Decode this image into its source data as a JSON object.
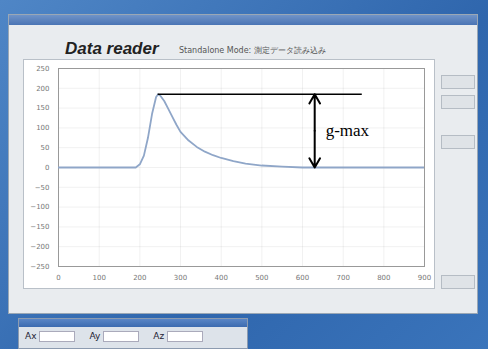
{
  "chart_data": {
    "type": "line",
    "title": "Data reader",
    "subtitle": "Standalone Mode: 測定データ読み込み",
    "x": [
      0,
      100,
      190,
      200,
      210,
      220,
      230,
      240,
      245,
      250,
      260,
      270,
      280,
      290,
      300,
      320,
      340,
      360,
      380,
      400,
      430,
      460,
      500,
      550,
      600,
      700,
      800,
      900
    ],
    "values": [
      0,
      0,
      0,
      8,
      30,
      75,
      135,
      178,
      185,
      182,
      168,
      148,
      128,
      108,
      90,
      68,
      52,
      40,
      31,
      24,
      16,
      10,
      5,
      2,
      0,
      0,
      0,
      0
    ],
    "color": "#8fa6c8",
    "xlim": [
      0,
      900
    ],
    "xticks": [
      0,
      100,
      200,
      300,
      400,
      500,
      600,
      700,
      800,
      900
    ],
    "ylim": [
      -250,
      250
    ],
    "yticks": [
      -250,
      -200,
      -150,
      -100,
      -50,
      0,
      50,
      100,
      150,
      200,
      250
    ],
    "grid": true,
    "annotations": [
      {
        "text": "g-max",
        "value": 185
      }
    ]
  },
  "panel": {
    "fields": [
      "Ax",
      "Ay",
      "Az"
    ]
  }
}
